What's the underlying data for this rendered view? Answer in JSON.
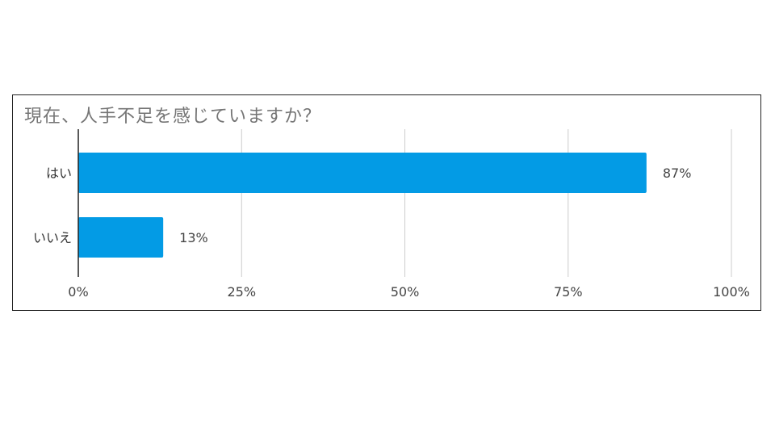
{
  "chart_data": {
    "type": "bar",
    "orientation": "horizontal",
    "title": "現在、人手不足を感じていますか？",
    "categories": [
      "はい",
      "いいえ"
    ],
    "values": [
      87,
      13
    ],
    "value_labels": [
      "87%",
      "13%"
    ],
    "xlim": [
      0,
      100
    ],
    "x_ticks": [
      0,
      25,
      50,
      75,
      100
    ],
    "x_tick_labels": [
      "0%",
      "25%",
      "50%",
      "75%",
      "100%"
    ],
    "grid": true,
    "bar_color": "#039BE5",
    "gridline_color": "#CCCCCC"
  }
}
